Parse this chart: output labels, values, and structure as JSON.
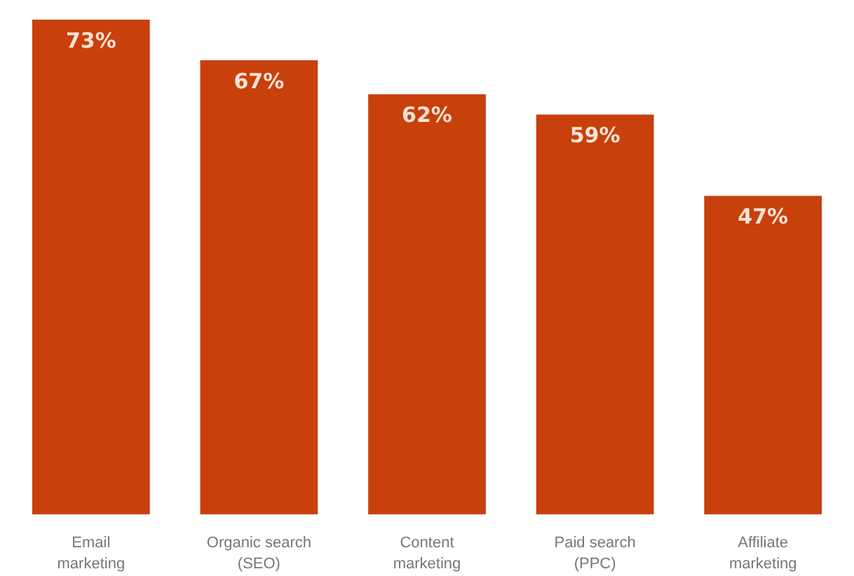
{
  "chart_data": {
    "type": "bar",
    "categories": [
      "Email marketing",
      "Organic search (SEO)",
      "Content marketing",
      "Paid search (PPC)",
      "Affiliate marketing"
    ],
    "values": [
      73,
      67,
      62,
      59,
      47
    ],
    "value_labels": [
      "73%",
      "67%",
      "62%",
      "59%",
      "47%"
    ],
    "color": "#c8400c",
    "ylim": [
      0,
      73
    ],
    "tick_labels": "x"
  }
}
